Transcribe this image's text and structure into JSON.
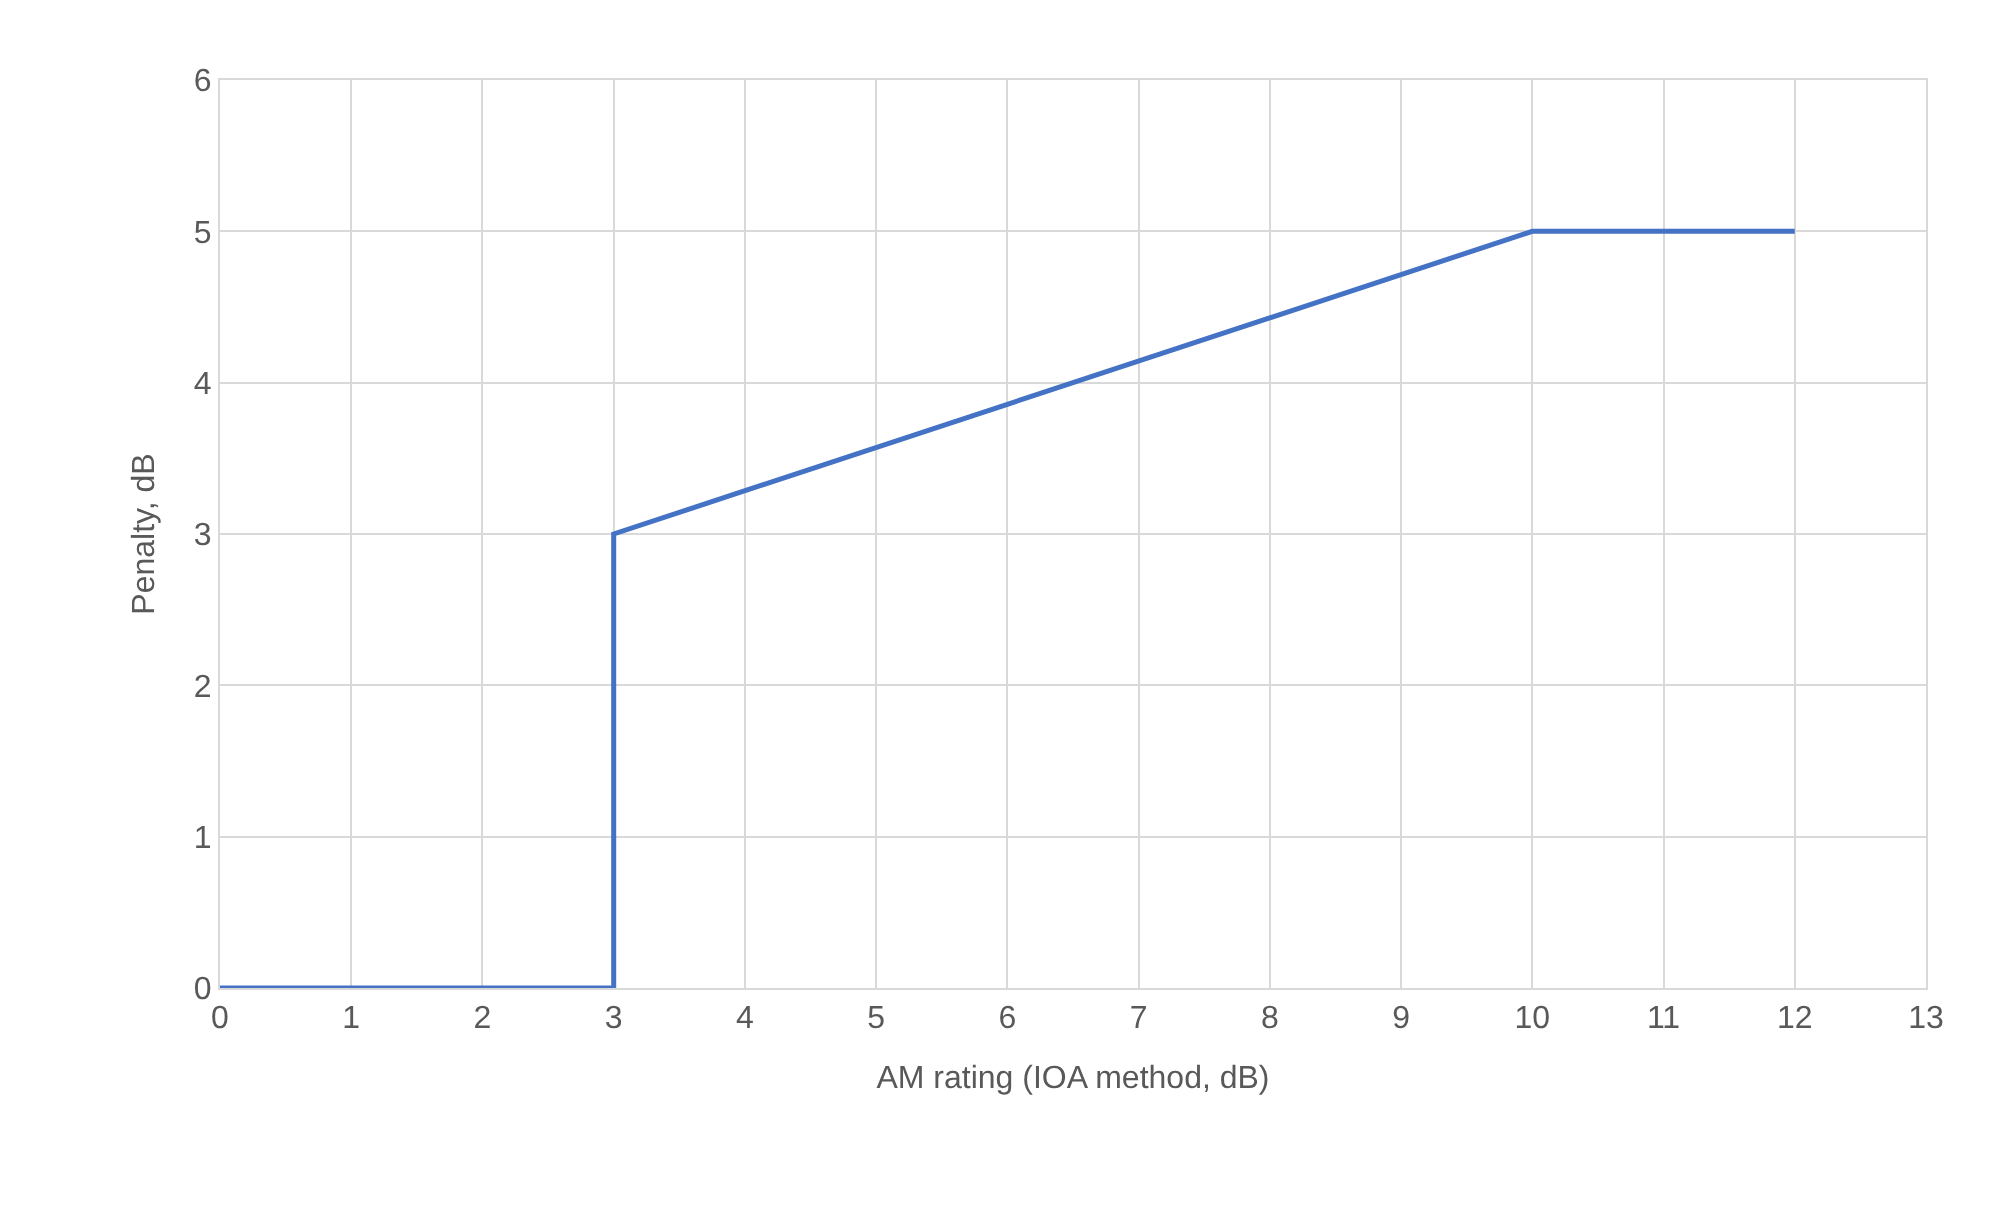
{
  "chart_data": {
    "type": "line",
    "xlabel": "AM rating (IOA method, dB)",
    "ylabel": "Penalty, dB",
    "x": [
      0,
      3,
      3,
      10,
      12
    ],
    "series": [
      {
        "color": "#4472c4",
        "values": [
          0,
          0,
          3,
          5,
          5
        ]
      }
    ],
    "xlim": [
      0,
      13
    ],
    "xticks": [
      0,
      1,
      2,
      3,
      4,
      5,
      6,
      7,
      8,
      9,
      10,
      11,
      12,
      13
    ],
    "ylim": [
      0,
      6
    ],
    "yticks": [
      0,
      1,
      2,
      3,
      4,
      5,
      6
    ],
    "grid": true,
    "marker": "none",
    "line_style": "solid"
  }
}
